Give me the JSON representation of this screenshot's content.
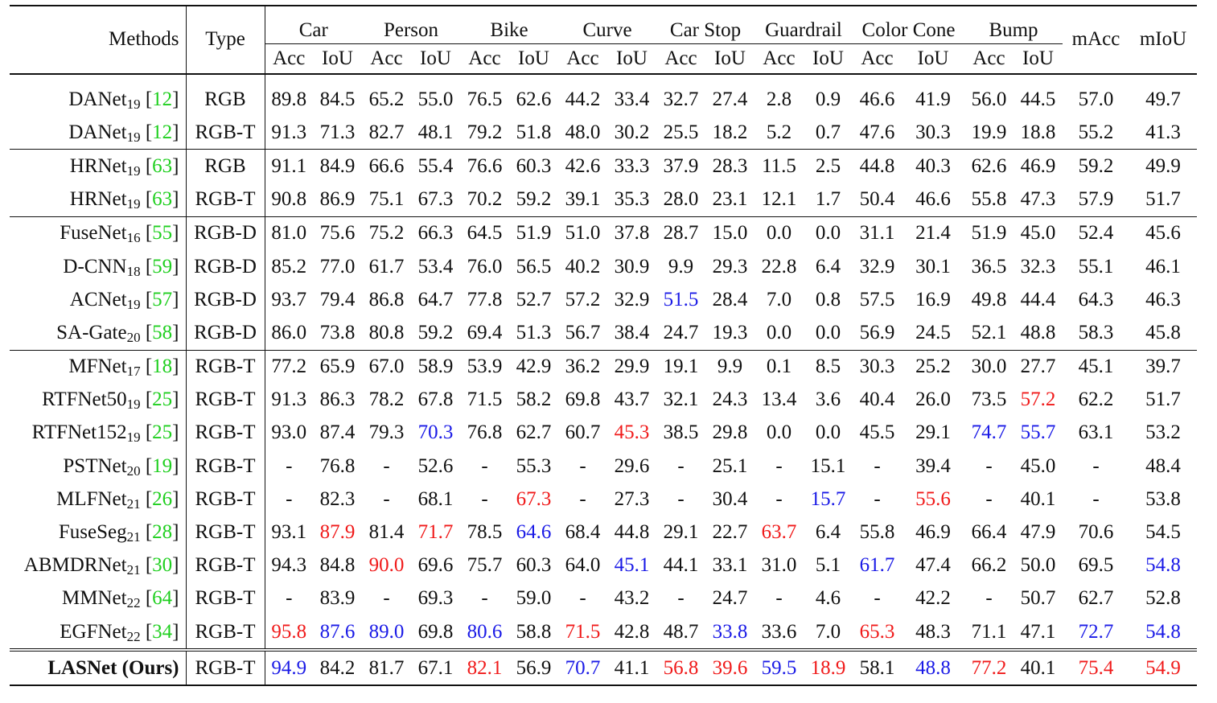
{
  "header": {
    "methods": "Methods",
    "type": "Type",
    "classes": [
      "Car",
      "Person",
      "Bike",
      "Curve",
      "Car Stop",
      "Guardrail",
      "Color Cone",
      "Bump"
    ],
    "acc": "Acc",
    "iou": "IoU",
    "macc": "mAcc",
    "miou": "mIoU"
  },
  "rows": [
    {
      "name": "DANet",
      "sub": "19",
      "cite": "12",
      "type": "RGB",
      "vals": [
        "89.8",
        "84.5",
        "65.2",
        "55.0",
        "76.5",
        "62.6",
        "44.2",
        "33.4",
        "32.7",
        "27.4",
        "2.8",
        "0.9",
        "46.6",
        "41.9",
        "56.0",
        "44.5",
        "57.0",
        "49.7"
      ],
      "hl": {}
    },
    {
      "name": "DANet",
      "sub": "19",
      "cite": "12",
      "type": "RGB-T",
      "vals": [
        "91.3",
        "71.3",
        "82.7",
        "48.1",
        "79.2",
        "51.8",
        "48.0",
        "30.2",
        "25.5",
        "18.2",
        "5.2",
        "0.7",
        "47.6",
        "30.3",
        "19.9",
        "18.8",
        "55.2",
        "41.3"
      ],
      "hl": {}
    },
    {
      "name": "HRNet",
      "sub": "19",
      "cite": "63",
      "type": "RGB",
      "vals": [
        "91.1",
        "84.9",
        "66.6",
        "55.4",
        "76.6",
        "60.3",
        "42.6",
        "33.3",
        "37.9",
        "28.3",
        "11.5",
        "2.5",
        "44.8",
        "40.3",
        "62.6",
        "46.9",
        "59.2",
        "49.9"
      ],
      "hl": {}
    },
    {
      "name": "HRNet",
      "sub": "19",
      "cite": "63",
      "type": "RGB-T",
      "vals": [
        "90.8",
        "86.9",
        "75.1",
        "67.3",
        "70.2",
        "59.2",
        "39.1",
        "35.3",
        "28.0",
        "23.1",
        "12.1",
        "1.7",
        "50.4",
        "46.6",
        "55.8",
        "47.3",
        "57.9",
        "51.7"
      ],
      "hl": {}
    },
    {
      "name": "FuseNet",
      "sub": "16",
      "cite": "55",
      "type": "RGB-D",
      "vals": [
        "81.0",
        "75.6",
        "75.2",
        "66.3",
        "64.5",
        "51.9",
        "51.0",
        "37.8",
        "28.7",
        "15.0",
        "0.0",
        "0.0",
        "31.1",
        "21.4",
        "51.9",
        "45.0",
        "52.4",
        "45.6"
      ],
      "hl": {}
    },
    {
      "name": "D-CNN",
      "sub": "18",
      "cite": "59",
      "type": "RGB-D",
      "vals": [
        "85.2",
        "77.0",
        "61.7",
        "53.4",
        "76.0",
        "56.5",
        "40.2",
        "30.9",
        "9.9",
        "29.3",
        "22.8",
        "6.4",
        "32.9",
        "30.1",
        "36.5",
        "32.3",
        "55.1",
        "46.1"
      ],
      "hl": {}
    },
    {
      "name": "ACNet",
      "sub": "19",
      "cite": "57",
      "type": "RGB-D",
      "vals": [
        "93.7",
        "79.4",
        "86.8",
        "64.7",
        "77.8",
        "52.7",
        "57.2",
        "32.9",
        "51.5",
        "28.4",
        "7.0",
        "0.8",
        "57.5",
        "16.9",
        "49.8",
        "44.4",
        "64.3",
        "46.3"
      ],
      "hl": {
        "8": "blue"
      }
    },
    {
      "name": "SA-Gate",
      "sub": "20",
      "cite": "58",
      "type": "RGB-D",
      "vals": [
        "86.0",
        "73.8",
        "80.8",
        "59.2",
        "69.4",
        "51.3",
        "56.7",
        "38.4",
        "24.7",
        "19.3",
        "0.0",
        "0.0",
        "56.9",
        "24.5",
        "52.1",
        "48.8",
        "58.3",
        "45.8"
      ],
      "hl": {}
    },
    {
      "name": "MFNet",
      "sub": "17",
      "cite": "18",
      "type": "RGB-T",
      "vals": [
        "77.2",
        "65.9",
        "67.0",
        "58.9",
        "53.9",
        "42.9",
        "36.2",
        "29.9",
        "19.1",
        "9.9",
        "0.1",
        "8.5",
        "30.3",
        "25.2",
        "30.0",
        "27.7",
        "45.1",
        "39.7"
      ],
      "hl": {}
    },
    {
      "name": "RTFNet50",
      "sub": "19",
      "cite": "25",
      "type": "RGB-T",
      "vals": [
        "91.3",
        "86.3",
        "78.2",
        "67.8",
        "71.5",
        "58.2",
        "69.8",
        "43.7",
        "32.1",
        "24.3",
        "13.4",
        "3.6",
        "40.4",
        "26.0",
        "73.5",
        "57.2",
        "62.2",
        "51.7"
      ],
      "hl": {
        "15": "red"
      }
    },
    {
      "name": "RTFNet152",
      "sub": "19",
      "cite": "25",
      "type": "RGB-T",
      "vals": [
        "93.0",
        "87.4",
        "79.3",
        "70.3",
        "76.8",
        "62.7",
        "60.7",
        "45.3",
        "38.5",
        "29.8",
        "0.0",
        "0.0",
        "45.5",
        "29.1",
        "74.7",
        "55.7",
        "63.1",
        "53.2"
      ],
      "hl": {
        "3": "blue",
        "7": "red",
        "14": "blue",
        "15": "blue"
      }
    },
    {
      "name": "PSTNet",
      "sub": "20",
      "cite": "19",
      "type": "RGB-T",
      "vals": [
        "-",
        "76.8",
        "-",
        "52.6",
        "-",
        "55.3",
        "-",
        "29.6",
        "-",
        "25.1",
        "-",
        "15.1",
        "-",
        "39.4",
        "-",
        "45.0",
        "-",
        "48.4"
      ],
      "hl": {}
    },
    {
      "name": "MLFNet",
      "sub": "21",
      "cite": "26",
      "type": "RGB-T",
      "vals": [
        "-",
        "82.3",
        "-",
        "68.1",
        "-",
        "67.3",
        "-",
        "27.3",
        "-",
        "30.4",
        "-",
        "15.7",
        "-",
        "55.6",
        "-",
        "40.1",
        "-",
        "53.8"
      ],
      "hl": {
        "5": "red",
        "11": "blue",
        "13": "red"
      }
    },
    {
      "name": "FuseSeg",
      "sub": "21",
      "cite": "28",
      "type": "RGB-T",
      "vals": [
        "93.1",
        "87.9",
        "81.4",
        "71.7",
        "78.5",
        "64.6",
        "68.4",
        "44.8",
        "29.1",
        "22.7",
        "63.7",
        "6.4",
        "55.8",
        "46.9",
        "66.4",
        "47.9",
        "70.6",
        "54.5"
      ],
      "hl": {
        "1": "red",
        "3": "red",
        "5": "blue",
        "10": "red"
      }
    },
    {
      "name": "ABMDRNet",
      "sub": "21",
      "cite": "30",
      "type": "RGB-T",
      "vals": [
        "94.3",
        "84.8",
        "90.0",
        "69.6",
        "75.7",
        "60.3",
        "64.0",
        "45.1",
        "44.1",
        "33.1",
        "31.0",
        "5.1",
        "61.7",
        "47.4",
        "66.2",
        "50.0",
        "69.5",
        "54.8"
      ],
      "hl": {
        "2": "red",
        "7": "blue",
        "12": "blue",
        "17": "blue"
      }
    },
    {
      "name": "MMNet",
      "sub": "22",
      "cite": "64",
      "type": "RGB-T",
      "vals": [
        "-",
        "83.9",
        "-",
        "69.3",
        "-",
        "59.0",
        "-",
        "43.2",
        "-",
        "24.7",
        "-",
        "4.6",
        "-",
        "42.2",
        "-",
        "50.7",
        "62.7",
        "52.8"
      ],
      "hl": {}
    },
    {
      "name": "EGFNet",
      "sub": "22",
      "cite": "34",
      "type": "RGB-T",
      "vals": [
        "95.8",
        "87.6",
        "89.0",
        "69.8",
        "80.6",
        "58.8",
        "71.5",
        "42.8",
        "48.7",
        "33.8",
        "33.6",
        "7.0",
        "65.3",
        "48.3",
        "71.1",
        "47.1",
        "72.7",
        "54.8"
      ],
      "hl": {
        "0": "red",
        "1": "blue",
        "2": "blue",
        "4": "blue",
        "6": "red",
        "9": "blue",
        "12": "red",
        "16": "blue",
        "17": "blue"
      }
    },
    {
      "name": "LASNet (Ours)",
      "sub": "",
      "cite": "",
      "type": "RGB-T",
      "vals": [
        "94.9",
        "84.2",
        "81.7",
        "67.1",
        "82.1",
        "56.9",
        "70.7",
        "41.1",
        "56.8",
        "39.6",
        "59.5",
        "18.9",
        "58.1",
        "48.8",
        "77.2",
        "40.1",
        "75.4",
        "54.9"
      ],
      "hl": {
        "0": "blue",
        "4": "red",
        "6": "blue",
        "8": "red",
        "9": "red",
        "10": "blue",
        "11": "red",
        "13": "blue",
        "14": "red",
        "16": "red",
        "17": "red"
      }
    }
  ]
}
